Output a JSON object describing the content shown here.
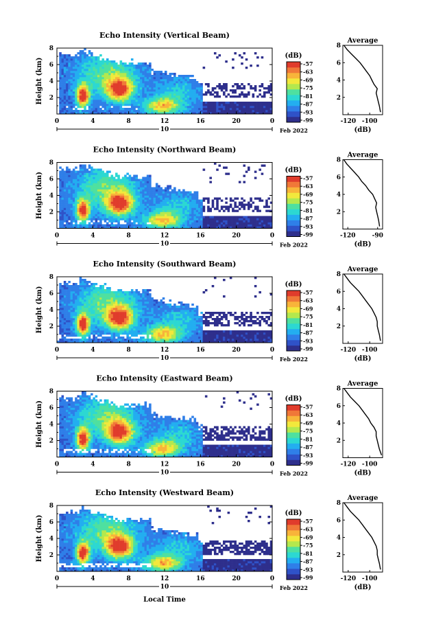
{
  "figure": {
    "xlabel": "Local Time",
    "date_label": "Feb 2022",
    "day_label": "10",
    "ylabel": "Height (km)",
    "colorbar_unit": "(dB)",
    "colorbar_ticks": [
      "-57",
      "-63",
      "-69",
      "-75",
      "-81",
      "-87",
      "-93",
      "-99"
    ],
    "profile_title": "Average",
    "profile_xlabel": "(dB)"
  },
  "colors": {
    "scale": [
      "#2e2f8c",
      "#2f52c8",
      "#2f7fe8",
      "#23aef0",
      "#2cd8d2",
      "#4ee0a0",
      "#b4e84e",
      "#f2e83c",
      "#f8b43a",
      "#f07838",
      "#e03c2c"
    ]
  },
  "chart_data": [
    {
      "type": "heatmap",
      "title": "Echo Intensity (Vertical Beam)",
      "xlabel": "Local Time",
      "ylabel": "Height (km)",
      "xlim": [
        0,
        24
      ],
      "ylim": [
        0,
        8
      ],
      "x_ticks": [
        "0",
        "4",
        "8",
        "12",
        "16",
        "20",
        "0"
      ],
      "y_ticks": [
        "2",
        "4",
        "6",
        "8"
      ],
      "colorbar_range_db": [
        -99,
        -57
      ],
      "average_profile": {
        "title": "Average",
        "xlabel": "(dB)",
        "x_ticks": [
          "-120",
          "-100"
        ],
        "y_ticks": [
          "2",
          "4",
          "6",
          "8"
        ],
        "xlim": [
          -125,
          -88
        ],
        "height_km": [
          0.3,
          1,
          1.5,
          2,
          2.5,
          3,
          3.5,
          4,
          4.5,
          5,
          5.5,
          6,
          6.5,
          7,
          7.5,
          8
        ],
        "value_db": [
          -90,
          -91,
          -92,
          -93,
          -94,
          -93,
          -96,
          -98,
          -100,
          -103,
          -106,
          -109,
          -113,
          -117,
          -121,
          -124
        ]
      }
    },
    {
      "type": "heatmap",
      "title": "Echo Intensity (Northward Beam)",
      "xlabel": "Local Time",
      "ylabel": "Height (km)",
      "xlim": [
        0,
        24
      ],
      "ylim": [
        0,
        8
      ],
      "x_ticks": [
        "0",
        "4",
        "8",
        "12",
        "16",
        "20",
        "0"
      ],
      "y_ticks": [
        "2",
        "4",
        "6",
        "8"
      ],
      "colorbar_range_db": [
        -99,
        -57
      ],
      "average_profile": {
        "title": "Average",
        "xlabel": "(dB)",
        "x_ticks": [
          "-120",
          "-90"
        ],
        "y_ticks": [
          "2",
          "4",
          "6",
          "8"
        ],
        "xlim": [
          -125,
          -85
        ],
        "height_km": [
          0.3,
          1,
          1.5,
          2,
          2.5,
          3,
          3.5,
          4,
          4.5,
          5,
          5.5,
          6,
          6.5,
          7,
          7.5,
          8
        ],
        "value_db": [
          -88,
          -89,
          -90,
          -91,
          -92,
          -91,
          -93,
          -95,
          -99,
          -102,
          -106,
          -109,
          -113,
          -117,
          -121,
          -124
        ]
      }
    },
    {
      "type": "heatmap",
      "title": "Echo Intensity (Southward Beam)",
      "xlabel": "Local Time",
      "ylabel": "Height (km)",
      "xlim": [
        0,
        24
      ],
      "ylim": [
        0,
        8
      ],
      "x_ticks": [
        "0",
        "4",
        "8",
        "12",
        "16",
        "20",
        "0"
      ],
      "y_ticks": [
        "2",
        "4",
        "6",
        "8"
      ],
      "colorbar_range_db": [
        -99,
        -57
      ],
      "average_profile": {
        "title": "Average",
        "xlabel": "(dB)",
        "x_ticks": [
          "-120",
          "-100"
        ],
        "y_ticks": [
          "2",
          "4",
          "6",
          "8"
        ],
        "xlim": [
          -125,
          -88
        ],
        "height_km": [
          0.3,
          1,
          1.5,
          2,
          2.5,
          3,
          3.5,
          4,
          4.5,
          5,
          5.5,
          6,
          6.5,
          7,
          7.5,
          8
        ],
        "value_db": [
          -90,
          -91,
          -92,
          -93,
          -93,
          -94,
          -96,
          -98,
          -101,
          -104,
          -107,
          -110,
          -114,
          -118,
          -121,
          -124
        ]
      }
    },
    {
      "type": "heatmap",
      "title": "Echo Intensity (Eastward Beam)",
      "xlabel": "Local Time",
      "ylabel": "Height (km)",
      "xlim": [
        0,
        24
      ],
      "ylim": [
        0,
        8
      ],
      "x_ticks": [
        "0",
        "4",
        "8",
        "12",
        "16",
        "20",
        "0"
      ],
      "y_ticks": [
        "2",
        "4",
        "6",
        "8"
      ],
      "colorbar_range_db": [
        -99,
        -57
      ],
      "average_profile": {
        "title": "Average",
        "xlabel": "(dB)",
        "x_ticks": [
          "-120",
          "-100"
        ],
        "y_ticks": [
          "2",
          "4",
          "6",
          "8"
        ],
        "xlim": [
          -125,
          -88
        ],
        "height_km": [
          0.3,
          1,
          1.5,
          2,
          2.5,
          3,
          3.5,
          4,
          4.5,
          5,
          5.5,
          6,
          6.5,
          7,
          7.5,
          8
        ],
        "value_db": [
          -89,
          -91,
          -92,
          -93,
          -94,
          -94,
          -96,
          -99,
          -101,
          -104,
          -107,
          -110,
          -114,
          -118,
          -121,
          -124
        ]
      }
    },
    {
      "type": "heatmap",
      "title": "Echo Intensity (Westward Beam)",
      "xlabel": "Local Time",
      "ylabel": "Height (km)",
      "xlim": [
        0,
        24
      ],
      "ylim": [
        0,
        8
      ],
      "x_ticks": [
        "0",
        "4",
        "8",
        "12",
        "16",
        "20",
        "0"
      ],
      "y_ticks": [
        "2",
        "4",
        "6",
        "8"
      ],
      "colorbar_range_db": [
        -99,
        -57
      ],
      "average_profile": {
        "title": "Average",
        "xlabel": "(dB)",
        "x_ticks": [
          "-120",
          "-100"
        ],
        "y_ticks": [
          "2",
          "4",
          "6",
          "8"
        ],
        "xlim": [
          -125,
          -88
        ],
        "height_km": [
          0.3,
          1,
          1.5,
          2,
          2.5,
          3,
          3.5,
          4,
          4.5,
          5,
          5.5,
          6,
          6.5,
          7,
          7.5,
          8
        ],
        "value_db": [
          -90,
          -91,
          -92,
          -93,
          -93,
          -94,
          -96,
          -98,
          -101,
          -104,
          -107,
          -110,
          -114,
          -118,
          -121,
          -124
        ]
      }
    }
  ]
}
